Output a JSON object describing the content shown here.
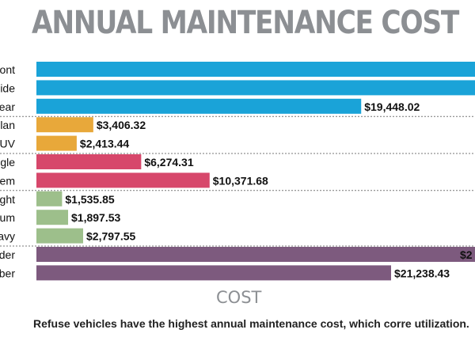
{
  "chart_data": {
    "type": "bar",
    "orientation": "horizontal",
    "title": "ANNUAL MAINTENANCE COST",
    "xlabel": "COST",
    "ylabel": "",
    "caption": "Refuse vehicles have the highest annual maintenance cost, which corre utilization.",
    "categories": [
      "ont",
      "ide",
      "ear",
      "lan",
      "UV",
      "gle",
      "em",
      "ght",
      "um",
      "avy",
      "der",
      "ber"
    ],
    "values": [
      null,
      null,
      19448.02,
      3406.32,
      2413.44,
      6274.31,
      10371.68,
      1535.85,
      1897.53,
      2797.55,
      null,
      21238.43
    ],
    "labels": [
      "",
      "",
      "$19,448.02",
      "$3,406.32",
      "$2,413.44",
      "$6,274.31",
      "$10,371.68",
      "$1,535.85",
      "$1,897.53",
      "$2,797.55",
      "$2",
      "$21,238.43"
    ],
    "groups": [
      {
        "color": "#1aa3d8",
        "start": 0,
        "end": 2
      },
      {
        "color": "#e8a83a",
        "start": 3,
        "end": 4
      },
      {
        "color": "#d7476b",
        "start": 5,
        "end": 6
      },
      {
        "color": "#9dbf8b",
        "start": 7,
        "end": 9
      },
      {
        "color": "#7d5a7e",
        "start": 10,
        "end": 11
      }
    ],
    "xlim": [
      0,
      21238.43
    ],
    "grid": false
  }
}
